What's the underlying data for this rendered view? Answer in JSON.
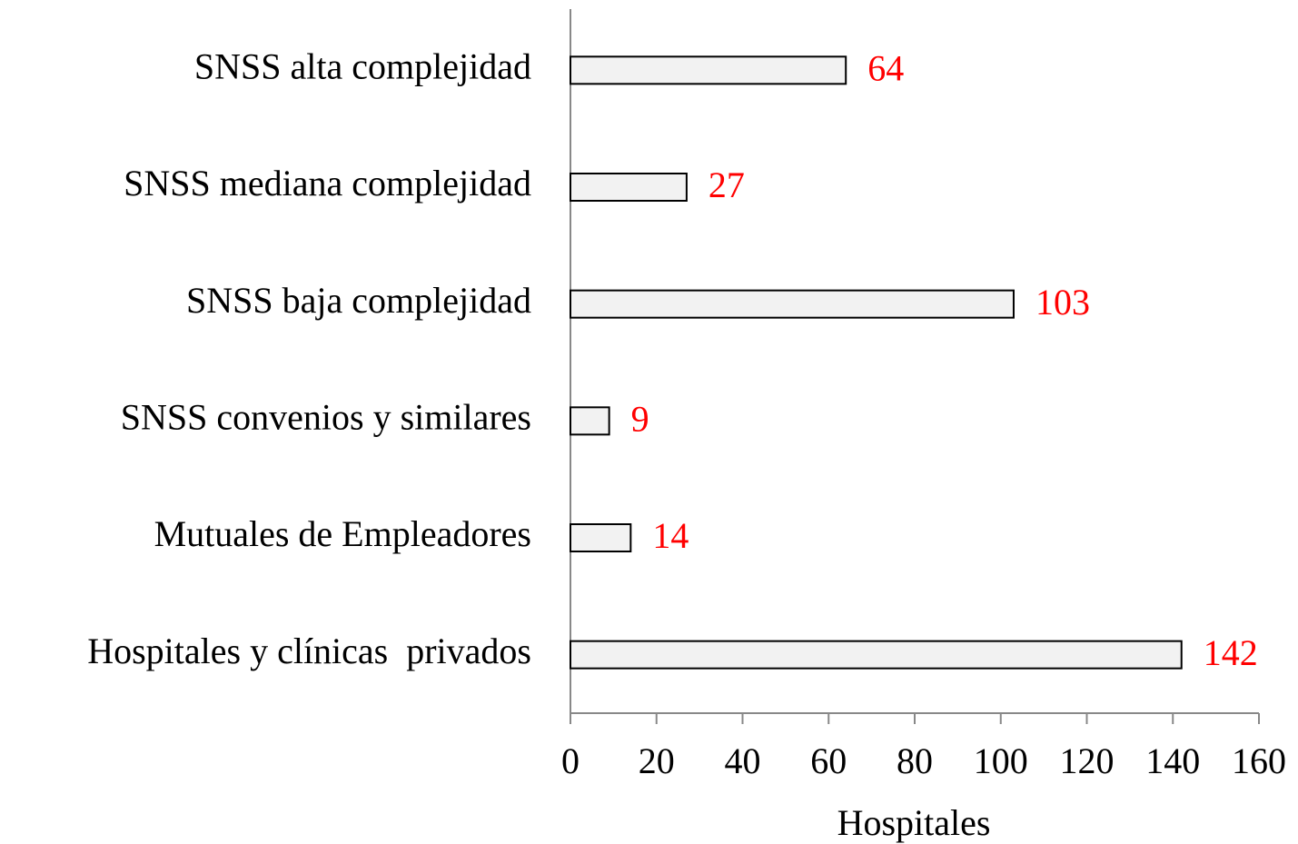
{
  "chart_data": {
    "type": "bar",
    "orientation": "horizontal",
    "categories": [
      "SNSS alta complejidad",
      "SNSS mediana complejidad",
      "SNSS baja complejidad",
      "SNSS convenios y similares",
      "Mutuales de Empleadores",
      "Hospitales y clínicas  privados"
    ],
    "values": [
      64,
      27,
      103,
      9,
      14,
      142
    ],
    "color": "#f2f2f2",
    "label_color": "#ff0000",
    "xlabel": "Hospitales",
    "xlim": [
      0,
      160
    ],
    "xticks": [
      0,
      20,
      40,
      60,
      80,
      100,
      120,
      140,
      160
    ],
    "grid": false
  }
}
